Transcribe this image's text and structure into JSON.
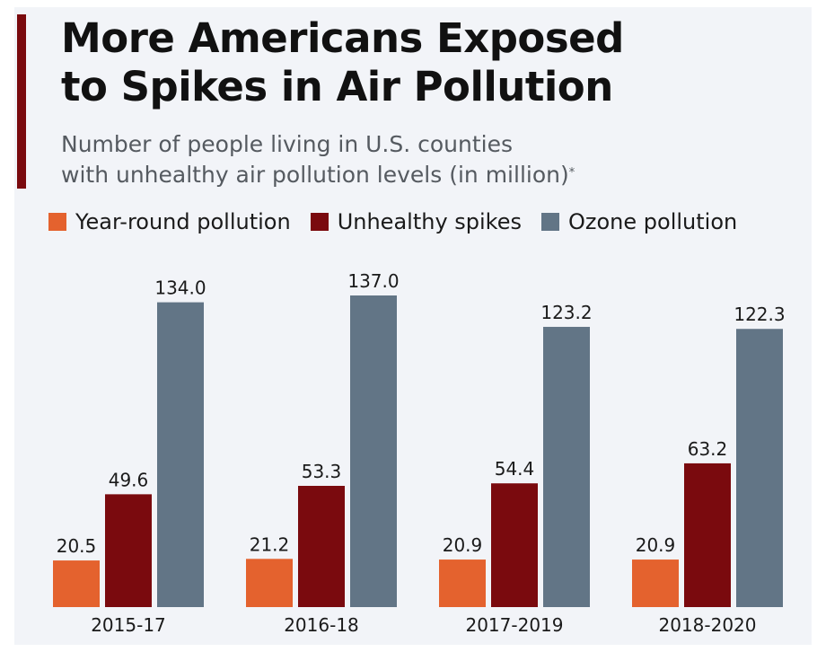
{
  "header": {
    "title_line1": "More Americans Exposed",
    "title_line2": "to Spikes in Air Pollution",
    "subtitle_line1": "Number of people living in U.S. counties",
    "subtitle_line2": "with unhealthy air pollution levels (in million)",
    "footnote_marker": "*"
  },
  "colors": {
    "accent": "#7a0a0e",
    "year_round": "#e4622e",
    "spikes": "#7a0a0e",
    "ozone": "#627586"
  },
  "chart_data": {
    "type": "bar",
    "title": "More Americans Exposed to Spikes in Air Pollution",
    "subtitle": "Number of people living in U.S. counties with unhealthy air pollution levels (in million)*",
    "categories": [
      "2015-17",
      "2016-18",
      "2017-2019",
      "2018-2020"
    ],
    "series": [
      {
        "name": "Year-round pollution",
        "values": [
          20.5,
          21.2,
          20.9,
          20.9
        ],
        "labels": [
          "20.5",
          "21.2",
          "20.9",
          "20.9"
        ]
      },
      {
        "name": "Unhealthy spikes",
        "values": [
          49.6,
          53.3,
          54.4,
          63.2
        ],
        "labels": [
          "49.6",
          "53.3",
          "54.4",
          "63.2"
        ]
      },
      {
        "name": "Ozone pollution",
        "values": [
          134.0,
          137.0,
          123.2,
          122.3
        ],
        "labels": [
          "134.0",
          "137.0",
          "123.2",
          "122.3"
        ]
      }
    ],
    "ylim": [
      0,
      137
    ],
    "grid": false,
    "legend_position": "top-left"
  }
}
